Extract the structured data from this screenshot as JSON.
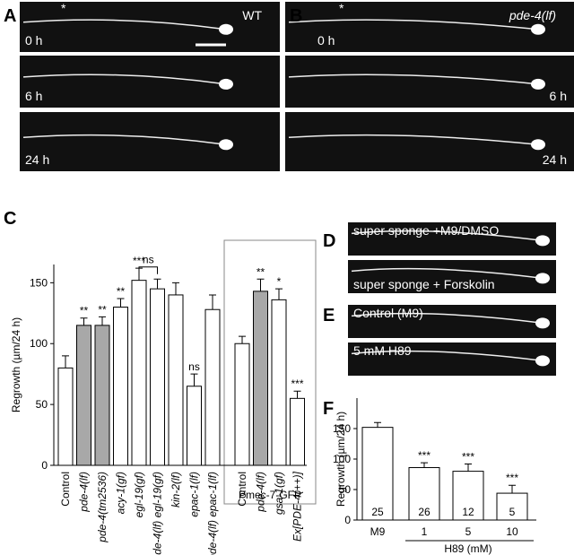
{
  "panels": {
    "A": {
      "label": "A",
      "genotype": "WT",
      "marker": "*",
      "times": [
        "0 h",
        "6 h",
        "24 h"
      ]
    },
    "B": {
      "label": "B",
      "genotype": "pde-4(lf)",
      "marker": "*",
      "times": [
        "0 h",
        "6 h",
        "24 h"
      ]
    },
    "D": {
      "label": "D",
      "conditions": [
        "super sponge +M9/DMSO",
        "super sponge + Forskolin"
      ]
    },
    "E": {
      "label": "E",
      "conditions": [
        "Control (M9)",
        "5 mM H89"
      ]
    }
  },
  "chart_data": [
    {
      "type": "bar",
      "panel_label": "C",
      "ylabel": "Regrowth (µm/24 h)",
      "categories": [
        "Control",
        "pde-4(lf)",
        "pde-4(tm2536)",
        "acy-1(gf)",
        "egl-19(gf)",
        "pde-4(lf) egl-19(gf)",
        "kin-2(lf)",
        "epac-1(lf)",
        "pde-4(lf) epac-1(lf)",
        "Control",
        "pde-4(lf)",
        "gsa-1(gf)",
        "Ex[PDE-4(++)]"
      ],
      "values": [
        80,
        115,
        115,
        130,
        152,
        145,
        140,
        65,
        128,
        100,
        143,
        136,
        55
      ],
      "errors": [
        10,
        6,
        7,
        7,
        10,
        8,
        10,
        10,
        12,
        6,
        10,
        9,
        6
      ],
      "colors": [
        "#ffffff",
        "#a8a8a8",
        "#a8a8a8",
        "#ffffff",
        "#ffffff",
        "#ffffff",
        "#ffffff",
        "#ffffff",
        "#ffffff",
        "#ffffff",
        "#a8a8a8",
        "#ffffff",
        "#ffffff"
      ],
      "annotations": [
        null,
        "**",
        "**",
        "**",
        "***",
        null,
        null,
        "ns",
        null,
        null,
        "**",
        "*",
        "***"
      ],
      "bracket_label": "ns",
      "box_label": "Pmec-7-GFP",
      "ylim": [
        0,
        165
      ],
      "yticks": [
        0,
        50,
        100,
        150
      ]
    },
    {
      "type": "bar",
      "panel_label": "F",
      "ylabel": "Regrowth (µm/24 h)",
      "xlabel": "H89 (mM)",
      "categories": [
        "M9",
        "1",
        "5",
        "10"
      ],
      "values": [
        152,
        86,
        80,
        44
      ],
      "errors": [
        8,
        8,
        12,
        13
      ],
      "colors": [
        "#ffffff",
        "#ffffff",
        "#ffffff",
        "#ffffff"
      ],
      "n": [
        25,
        26,
        12,
        5
      ],
      "annotations": [
        null,
        "***",
        "***",
        "***"
      ],
      "ylim": [
        0,
        200
      ],
      "yticks": [
        0,
        50,
        100,
        150
      ]
    }
  ]
}
